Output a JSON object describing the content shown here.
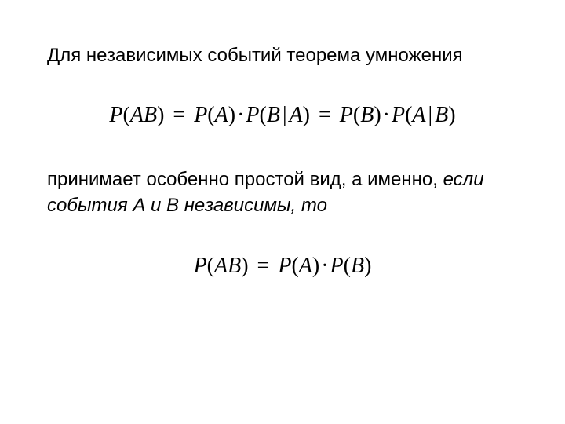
{
  "page": {
    "background_color": "#ffffff",
    "text_color": "#000000",
    "body_fontsize": 24,
    "formula_fontsize": 28,
    "body_font": "Arial",
    "formula_font": "Times New Roman"
  },
  "text1": "Для независимых событий теорема умножения",
  "text2_part1": "принимает особенно простой вид, а именно, ",
  "text2_italic": "если события А и В независимы, то",
  "formula1": {
    "latex": "P(AB) = P(A) · P(B | A) = P(B) · P(A | B)",
    "tokens": {
      "p1": "P",
      "lp1": "(",
      "ab": "AB",
      "rp1": ")",
      "eq1": "=",
      "p2": "P",
      "lp2": "(",
      "a1": "A",
      "rp2": ")",
      "dot1": "·",
      "p3": "P",
      "lp3": "(",
      "b1": "B",
      "bar1": "|",
      "a2": "A",
      "rp3": ")",
      "eq2": "=",
      "p4": "P",
      "lp4": "(",
      "b2": "B",
      "rp4": ")",
      "dot2": "·",
      "p5": "P",
      "lp5": "(",
      "a3": "A",
      "bar2": "|",
      "b3": "B",
      "rp5": ")"
    }
  },
  "formula2": {
    "latex": "P(AB) = P(A) · P(B)",
    "tokens": {
      "p1": "P",
      "lp1": "(",
      "ab": "AB",
      "rp1": ")",
      "eq1": "=",
      "p2": "P",
      "lp2": "(",
      "a1": "A",
      "rp2": ")",
      "dot1": "·",
      "p3": "P",
      "lp3": "(",
      "b1": "B",
      "rp3": ")"
    }
  }
}
